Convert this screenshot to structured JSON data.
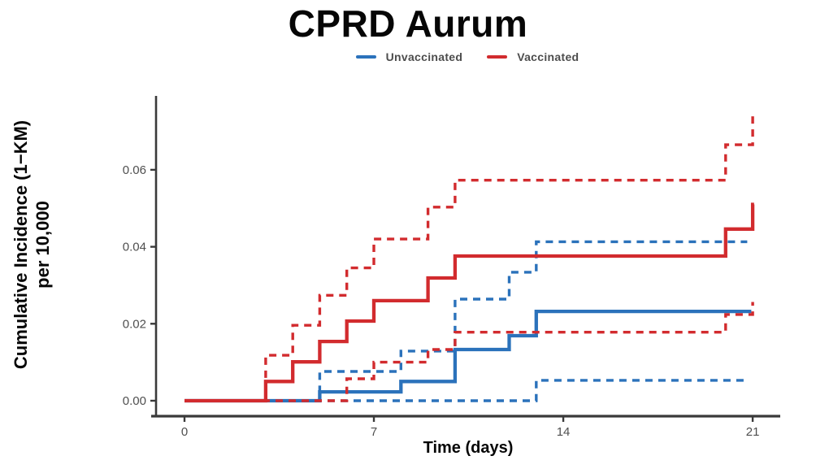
{
  "title": "CPRD Aurum",
  "chart_data": {
    "type": "line",
    "subtype": "kaplan-meier-cumulative-incidence-step",
    "title": "CPRD Aurum",
    "xlabel": "Time (days)",
    "ylabel_line1": "Cumulative Incidence (1−KM)",
    "ylabel_line2": "per 10,000",
    "xlim": [
      0,
      22
    ],
    "ylim": [
      0,
      0.075
    ],
    "grid": false,
    "x_ticks": [
      0,
      7,
      14,
      21
    ],
    "y_ticks": [
      0,
      0.02,
      0.04,
      0.06
    ],
    "y_tick_labels": [
      "0.00",
      "0.02",
      "0.04",
      "0.06"
    ],
    "axis_color": "#3a3a3a",
    "legend": {
      "position": "top",
      "items": [
        {
          "label": "Unvaccinated",
          "color": "#2b72bb"
        },
        {
          "label": "Vaccinated",
          "color": "#d22b2e"
        }
      ]
    },
    "series": [
      {
        "name": "Unvaccinated lower 95% CI",
        "group": "Unvaccinated",
        "color": "#2b72bb",
        "dashed": true,
        "start": [
          0,
          0
        ],
        "steps": [
          [
            13,
            0.0053
          ]
        ],
        "end_x": 20.8
      },
      {
        "name": "Unvaccinated upper 95% CI",
        "group": "Unvaccinated",
        "color": "#2b72bb",
        "dashed": true,
        "start": [
          0,
          0
        ],
        "steps": [
          [
            5,
            0.0076
          ],
          [
            8,
            0.0129
          ],
          [
            10,
            0.0264
          ],
          [
            12,
            0.0334
          ],
          [
            13,
            0.0413
          ]
        ],
        "end_x": 20.8
      },
      {
        "name": "Unvaccinated estimate",
        "group": "Unvaccinated",
        "color": "#2b72bb",
        "dashed": false,
        "start": [
          0,
          0
        ],
        "steps": [
          [
            5,
            0.0023
          ],
          [
            8,
            0.005
          ],
          [
            10,
            0.0133
          ],
          [
            12,
            0.0169
          ],
          [
            13,
            0.0232
          ]
        ],
        "end_x": 20.95
      },
      {
        "name": "Vaccinated lower 95% CI",
        "group": "Vaccinated",
        "color": "#d22b2e",
        "dashed": true,
        "start": [
          0,
          0
        ],
        "steps": [
          [
            6,
            0.0057
          ],
          [
            7,
            0.01
          ],
          [
            9,
            0.0133
          ],
          [
            10,
            0.0178
          ],
          [
            20,
            0.0224
          ],
          [
            21,
            0.0253
          ]
        ],
        "end_x": 21.05
      },
      {
        "name": "Vaccinated upper 95% CI",
        "group": "Vaccinated",
        "color": "#d22b2e",
        "dashed": true,
        "start": [
          0,
          0
        ],
        "steps": [
          [
            3,
            0.0118
          ],
          [
            4,
            0.0196
          ],
          [
            5,
            0.0274
          ],
          [
            6,
            0.0345
          ],
          [
            7,
            0.042
          ],
          [
            9,
            0.0503
          ],
          [
            10,
            0.0573
          ],
          [
            20,
            0.0665
          ],
          [
            21,
            0.0739
          ]
        ],
        "end_x": 21.05
      },
      {
        "name": "Vaccinated estimate",
        "group": "Vaccinated",
        "color": "#d22b2e",
        "dashed": false,
        "start": [
          0,
          0
        ],
        "steps": [
          [
            3,
            0.005
          ],
          [
            4,
            0.0101
          ],
          [
            5,
            0.0154
          ],
          [
            6,
            0.0207
          ],
          [
            7,
            0.026
          ],
          [
            9,
            0.0319
          ],
          [
            10,
            0.0376
          ],
          [
            20,
            0.0446
          ],
          [
            21,
            0.051
          ]
        ],
        "end_x": 21.05
      }
    ]
  }
}
